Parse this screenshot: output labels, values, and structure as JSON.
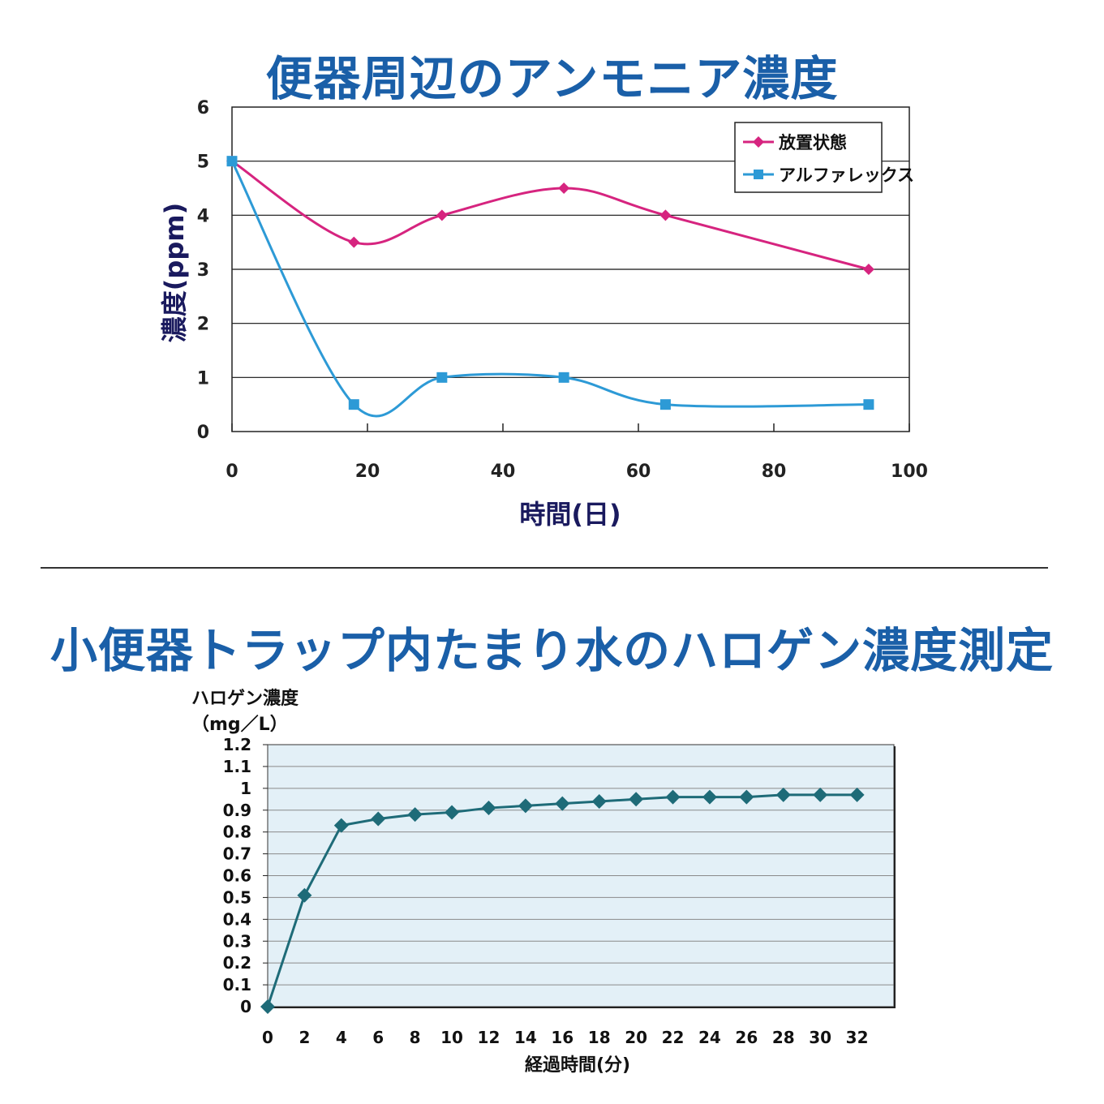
{
  "chart_data": [
    {
      "type": "line",
      "title": "便器周辺のアンモニア濃度",
      "xlabel": "時間(日)",
      "ylabel": "濃度(ppm)",
      "xlim": [
        0,
        100
      ],
      "ylim": [
        0,
        6
      ],
      "x_ticks": [
        "0",
        "20",
        "40",
        "60",
        "80",
        "100"
      ],
      "y_ticks": [
        "0",
        "1",
        "2",
        "3",
        "4",
        "5",
        "6"
      ],
      "grid": "horizontal",
      "legend_position": "top-right",
      "series": [
        {
          "name": "放置状態",
          "color": "#d6247f",
          "marker": "diamond",
          "x": [
            0,
            18,
            31,
            49,
            64,
            94
          ],
          "y": [
            5,
            3.5,
            4,
            4.5,
            4,
            3
          ]
        },
        {
          "name": "アルファレックス",
          "color": "#2d9ad6",
          "marker": "square",
          "x": [
            0,
            18,
            31,
            49,
            64,
            94
          ],
          "y": [
            5,
            0.5,
            1,
            1,
            0.5,
            0.5
          ]
        }
      ]
    },
    {
      "type": "line",
      "title": "小便器トラップ内たまり水のハロゲン濃度測定",
      "xlabel": "経過時間(分)",
      "ylabel": "ハロゲン濃度",
      "ylabel_unit": "（mg／L）",
      "xlim": [
        0,
        34
      ],
      "ylim": [
        0,
        1.2
      ],
      "x_ticks": [
        "0",
        "2",
        "4",
        "6",
        "8",
        "10",
        "12",
        "14",
        "16",
        "18",
        "20",
        "22",
        "24",
        "26",
        "28",
        "30",
        "32"
      ],
      "y_ticks": [
        "0",
        "0.1",
        "0.2",
        "0.3",
        "0.4",
        "0.5",
        "0.6",
        "0.7",
        "0.8",
        "0.9",
        "1",
        "1.1",
        "1.2"
      ],
      "grid": "horizontal",
      "plot_background": "#e3f0f7",
      "series": [
        {
          "color": "#1e6b78",
          "marker": "diamond",
          "x": [
            0,
            2,
            4,
            6,
            8,
            10,
            12,
            14,
            16,
            18,
            20,
            22,
            24,
            26,
            28,
            30,
            32
          ],
          "y": [
            0,
            0.51,
            0.83,
            0.86,
            0.88,
            0.89,
            0.91,
            0.92,
            0.93,
            0.94,
            0.95,
            0.96,
            0.96,
            0.96,
            0.97,
            0.97,
            0.97
          ]
        }
      ]
    }
  ]
}
